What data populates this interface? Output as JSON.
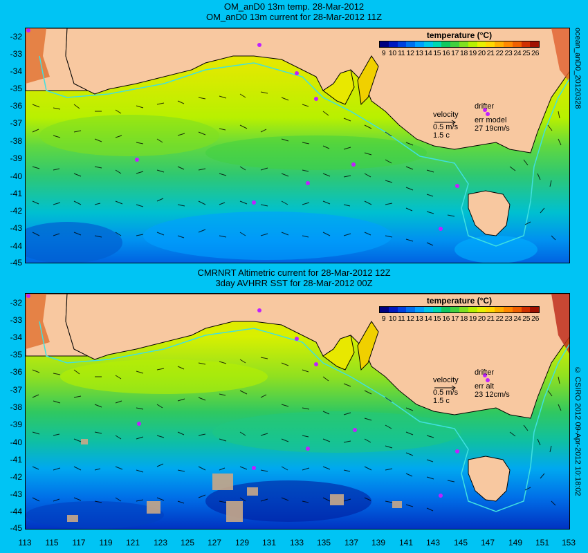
{
  "panels": [
    {
      "title_line1": "OM_anD0 13m temp. 28-Mar-2012",
      "title_line2": "OM_anD0 13m current for 28-Mar-2012 11Z",
      "legend": {
        "velocity_label": "velocity",
        "velocity_value": "0.5 m/s",
        "velocity_sub": "1.5 c",
        "drifter_label": "drifter",
        "err_label": "err model",
        "err_value": "27 19cm/s"
      }
    },
    {
      "title_line1": "CMRNRT Altimetric current for 28-Mar-2012 12Z",
      "title_line2": "3day AVHRR SST for 28-Mar-2012 00Z",
      "legend": {
        "velocity_label": "velocity",
        "velocity_value": "0.5 m/s",
        "velocity_sub": "1.5 c",
        "drifter_label": "drifter",
        "err_label": "err alt",
        "err_value": "23 12cm/s"
      }
    }
  ],
  "colorbar": {
    "title": "temperature (°C)",
    "labels": [
      "9",
      "10",
      "11",
      "12",
      "13",
      "14",
      "15",
      "16",
      "17",
      "18",
      "19",
      "20",
      "21",
      "22",
      "23",
      "24",
      "25",
      "26"
    ],
    "colors": [
      "#000080",
      "#0018c0",
      "#0040e0",
      "#0070f0",
      "#00a0ff",
      "#00c8e8",
      "#00d8b0",
      "#10c860",
      "#40d040",
      "#80e020",
      "#b8f000",
      "#e8f000",
      "#ffd800",
      "#ffb000",
      "#ff8800",
      "#f06000",
      "#d03000",
      "#a01000"
    ]
  },
  "y_ticks": [
    "-32",
    "-33",
    "-34",
    "-35",
    "-36",
    "-37",
    "-38",
    "-39",
    "-40",
    "-41",
    "-42",
    "-43",
    "-44",
    "-45"
  ],
  "x_ticks": [
    "113",
    "115",
    "117",
    "119",
    "121",
    "123",
    "125",
    "127",
    "129",
    "131",
    "133",
    "135",
    "137",
    "139",
    "141",
    "143",
    "145",
    "147",
    "149",
    "151",
    "153"
  ],
  "side_text_top": "ocean_anD0_20120328",
  "side_text_bottom": "© CSIRO 2012   09-Apr-2012 10:18:02",
  "land_color": "#f8c8a0"
}
